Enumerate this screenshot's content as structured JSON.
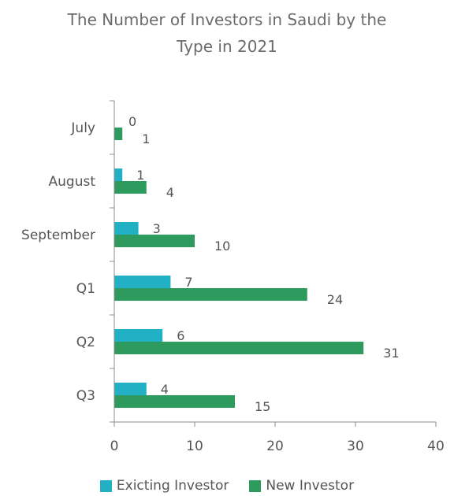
{
  "chart_data": {
    "type": "bar",
    "orientation": "horizontal",
    "title_lines": [
      "The Number of Investors in Saudi by the",
      "Type in 2021"
    ],
    "categories": [
      "July",
      "August",
      "September",
      "Q1",
      "Q2",
      "Q3"
    ],
    "series": [
      {
        "name": "Exicting Investor",
        "color": "#22b0c4",
        "values": [
          0,
          1,
          3,
          7,
          6,
          4
        ]
      },
      {
        "name": "New Investor",
        "color": "#2e9a5e",
        "values": [
          1,
          4,
          10,
          24,
          31,
          15
        ]
      }
    ],
    "xlim": [
      0,
      40
    ],
    "xticks": [
      0,
      10,
      20,
      30,
      40
    ],
    "data_labels": true,
    "grid": false,
    "legend_position": "bottom"
  }
}
